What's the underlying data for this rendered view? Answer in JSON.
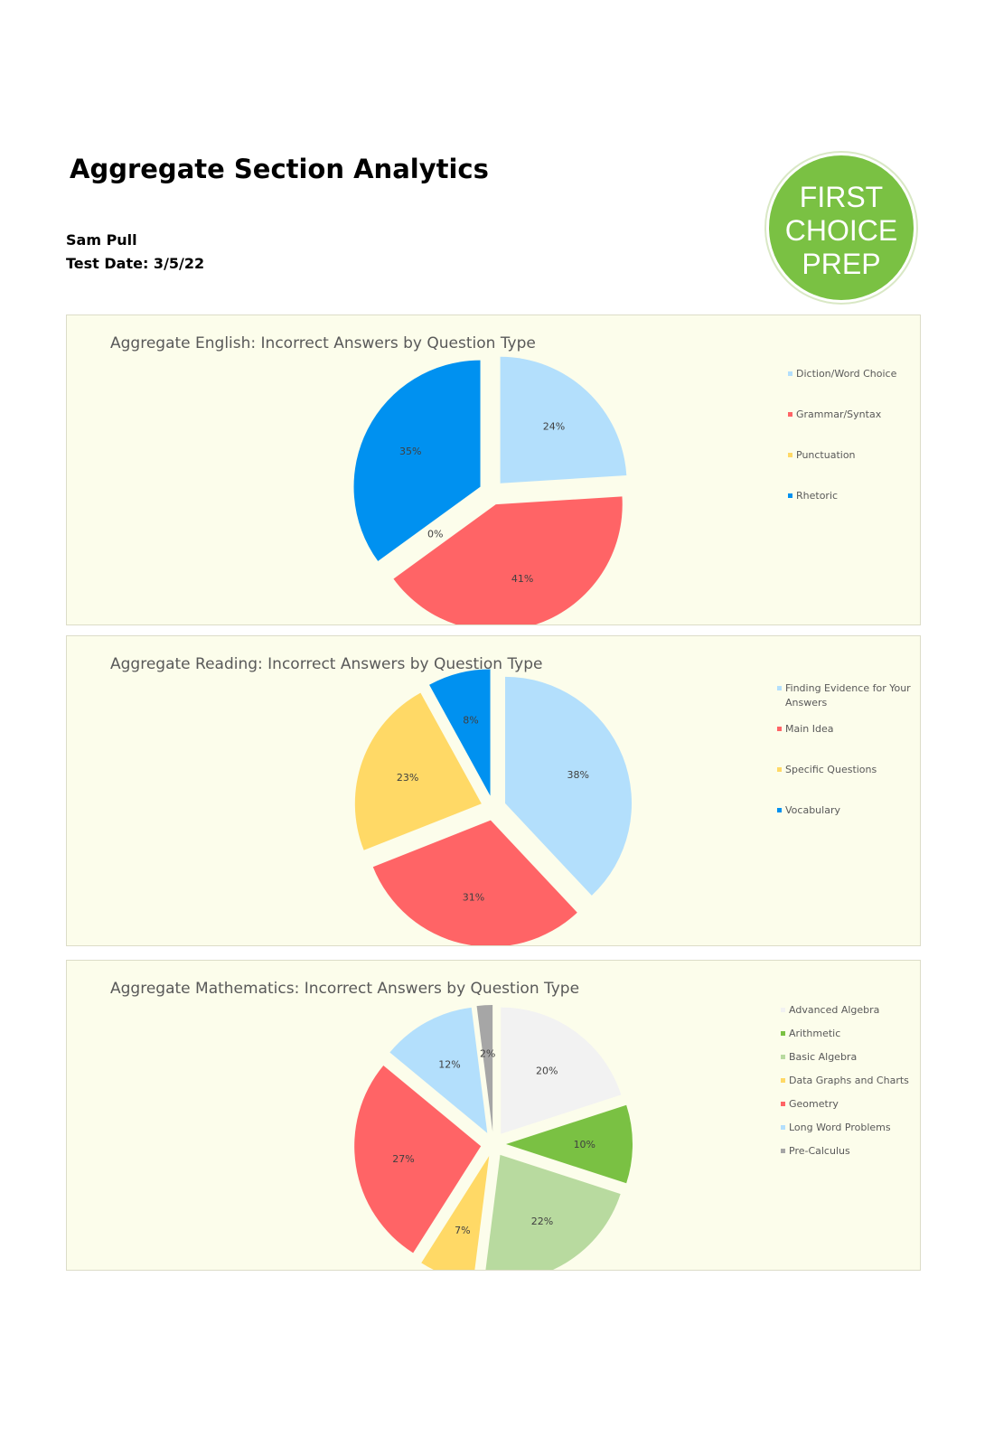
{
  "header": {
    "title": "Aggregate Section Analytics",
    "student": "Sam Pull",
    "test_date": "Test Date: 3/5/22"
  },
  "logo": {
    "lines": [
      "FIRST",
      "CHOICE",
      "PREP"
    ],
    "color": "#7ac143"
  },
  "colors": {
    "panel_bg": "#fcfdeb",
    "light_blue": "#b3dffc",
    "red": "#ff6466",
    "yellow": "#ffd966",
    "blue": "#0091f0",
    "light_gray": "#f2f2f2",
    "green": "#7ac143",
    "light_green": "#b8da9f",
    "gray": "#a6a6a6"
  },
  "chart_data": [
    {
      "type": "pie",
      "title": "Aggregate English: Incorrect Answers by Question Type",
      "categories": [
        "Diction/Word Choice",
        "Grammar/Syntax",
        "Punctuation",
        "Rhetoric"
      ],
      "values": [
        24,
        41,
        0,
        35
      ],
      "labels": [
        "24%",
        "41%",
        "0%",
        "35%"
      ],
      "colors": [
        "#b3dffc",
        "#ff6466",
        "#ffd966",
        "#0091f0"
      ],
      "legend": "right"
    },
    {
      "type": "pie",
      "title": "Aggregate Reading: Incorrect Answers by Question Type",
      "categories": [
        "Finding Evidence for Your Answers",
        "Main Idea",
        "Specific Questions",
        "Vocabulary"
      ],
      "values": [
        38,
        31,
        23,
        8
      ],
      "labels": [
        "38%",
        "31%",
        "23%",
        "8%"
      ],
      "colors": [
        "#b3dffc",
        "#ff6466",
        "#ffd966",
        "#0091f0"
      ],
      "legend": "right"
    },
    {
      "type": "pie",
      "title": "Aggregate Mathematics: Incorrect Answers by Question Type",
      "categories": [
        "Advanced Algebra",
        "Arithmetic",
        "Basic Algebra",
        "Data Graphs and Charts",
        "Geometry",
        "Long Word Problems",
        "Pre-Calculus"
      ],
      "values": [
        20,
        10,
        22,
        7,
        27,
        12,
        2
      ],
      "labels": [
        "20%",
        "10%",
        "22%",
        "7%",
        "27%",
        "12%",
        "2%"
      ],
      "colors": [
        "#f2f2f2",
        "#7ac143",
        "#b8da9f",
        "#ffd966",
        "#ff6466",
        "#b3dffc",
        "#a6a6a6"
      ],
      "legend": "right"
    }
  ]
}
